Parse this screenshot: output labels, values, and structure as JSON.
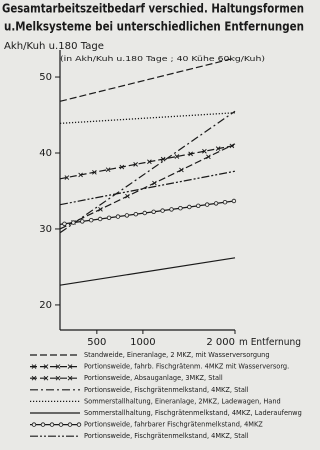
{
  "chart_data": {
    "type": "line",
    "title": [
      "Gesamtarbeitszeitbedarf verschied. Haltungsformen",
      "u.Melksysteme bei unterschiedlichen Entfernungen"
    ],
    "subtitle": "(in Akh/Kuh u.180 Tage ; 40 Kühe 60kg/Kuh)",
    "ylabel": "Akh/Kuh u.180 Tage",
    "xlabel": "m Entfernung",
    "x": [
      100,
      2000
    ],
    "xlim": [
      100,
      2000
    ],
    "xticks": [
      500,
      1000,
      {
        "value": 2000,
        "label": "2 000"
      }
    ],
    "ylim": [
      16.7,
      52.9
    ],
    "yticks": [
      20,
      30,
      40,
      50
    ],
    "series": [
      {
        "name": "Standweide, Eineranlage, 2 MKZ, mit Wasserversorgung",
        "color": "#1a1a1a",
        "dash": "dashed",
        "marker": "none",
        "values": [
          46.8,
          52.5
        ]
      },
      {
        "name": "Portionsweide, fahrb. Fischgrätenm. 4MKZ mit Wasserversorg.",
        "color": "#1a1a1a",
        "dash": "dashed",
        "marker": "x",
        "values": [
          36.6,
          41.0
        ]
      },
      {
        "name": "Portionsweide, Absauganlage, 3MKZ, Stall",
        "color": "#1a1a1a",
        "dash": "dashed",
        "marker": "x-sparse",
        "values": [
          30.0,
          41.2
        ]
      },
      {
        "name": "Portionsweide, Fischgrätenmelkstand, 4MKZ, Stall",
        "color": "#1a1a1a",
        "dash": "dashdot",
        "marker": "none",
        "values": [
          29.5,
          45.5
        ]
      },
      {
        "name": "Sommerstallhaltung, Eineranlage, 2MKZ, Ladewagen, Hand",
        "color": "#1a1a1a",
        "dash": "dotted",
        "marker": "none",
        "values": [
          43.9,
          45.3
        ]
      },
      {
        "name": "Sommerstallhaltung, Fischgrätenmelkstand, 4MKZ, Laderaufenwg",
        "color": "#1a1a1a",
        "dash": "solid",
        "marker": "none",
        "values": [
          22.6,
          26.2
        ]
      },
      {
        "name": "Portionsweide, fahrbarer Fischgrätenmelkstand, 4MKZ",
        "color": "#1a1a1a",
        "dash": "solid",
        "marker": "o",
        "values": [
          30.6,
          33.7
        ]
      },
      {
        "name": "Portionsweide, Fischgrätenmelkstand, 4MKZ, Stall",
        "color": "#1a1a1a",
        "dash": "dashdotdot",
        "marker": "none",
        "values": [
          33.2,
          37.6
        ]
      }
    ]
  }
}
